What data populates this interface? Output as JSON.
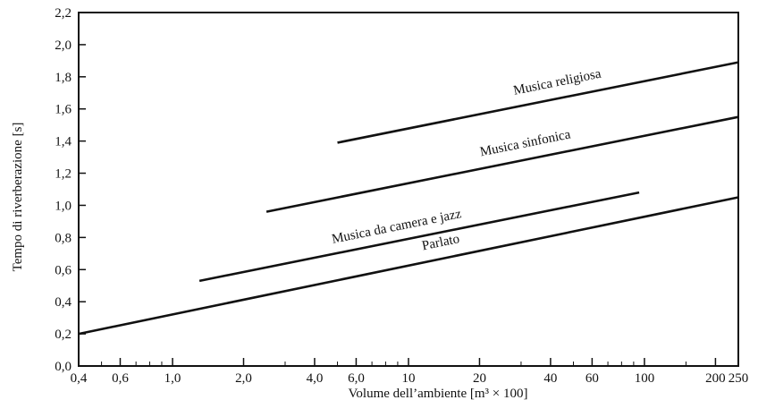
{
  "chart_data": {
    "type": "line",
    "title": "",
    "xlabel": "Volume dell’ambiente  [m³ × 100]",
    "ylabel": "Tempo di riverberazione [s]",
    "x_scale": "log",
    "xlim": [
      0.4,
      250
    ],
    "ylim": [
      0.0,
      2.2
    ],
    "x_ticks": [
      {
        "value": 0.4,
        "label": "0,4"
      },
      {
        "value": 0.6,
        "label": "0,6"
      },
      {
        "value": 1.0,
        "label": "1,0"
      },
      {
        "value": 2.0,
        "label": "2,0"
      },
      {
        "value": 4.0,
        "label": "4,0"
      },
      {
        "value": 6.0,
        "label": "6,0"
      },
      {
        "value": 10,
        "label": "10"
      },
      {
        "value": 20,
        "label": "20"
      },
      {
        "value": 40,
        "label": "40"
      },
      {
        "value": 60,
        "label": "60"
      },
      {
        "value": 100,
        "label": "100"
      },
      {
        "value": 200,
        "label": "200"
      },
      {
        "value": 250,
        "label": "250"
      }
    ],
    "y_ticks": [
      {
        "value": 0.0,
        "label": "0,0"
      },
      {
        "value": 0.2,
        "label": "0,2"
      },
      {
        "value": 0.4,
        "label": "0,4"
      },
      {
        "value": 0.6,
        "label": "0,6"
      },
      {
        "value": 0.8,
        "label": "0,8"
      },
      {
        "value": 1.0,
        "label": "1,0"
      },
      {
        "value": 1.2,
        "label": "1,2"
      },
      {
        "value": 1.4,
        "label": "1,4"
      },
      {
        "value": 1.6,
        "label": "1,6"
      },
      {
        "value": 1.8,
        "label": "1,8"
      },
      {
        "value": 2.0,
        "label": "2,0"
      },
      {
        "value": 2.2,
        "label": "2,2"
      }
    ],
    "grid": false,
    "series": [
      {
        "name": "Musica religiosa",
        "x": [
          5.0,
          250
        ],
        "y": [
          1.39,
          1.89
        ]
      },
      {
        "name": "Musica sinfonica",
        "x": [
          2.5,
          250
        ],
        "y": [
          0.96,
          1.55
        ]
      },
      {
        "name": "Musica da camera e jazz",
        "x": [
          1.3,
          95
        ],
        "y": [
          0.53,
          1.08
        ]
      },
      {
        "name": "Parlato",
        "x": [
          0.4,
          250
        ],
        "y": [
          0.2,
          1.05
        ]
      }
    ]
  }
}
